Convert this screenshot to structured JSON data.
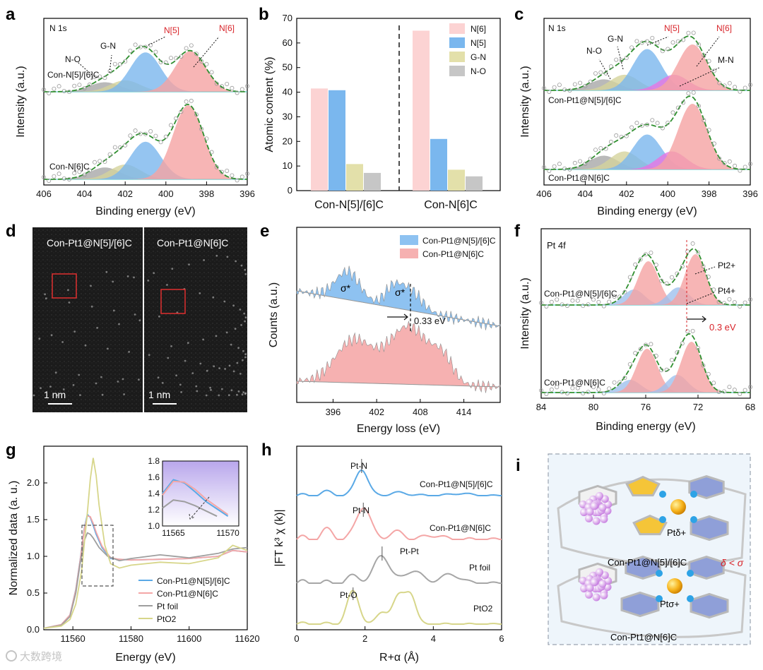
{
  "figure": {
    "panels": [
      "a",
      "b",
      "c",
      "d",
      "e",
      "f",
      "g",
      "h",
      "i"
    ],
    "watermark": "大数跨境"
  },
  "chart_data": [
    {
      "id": "a",
      "type": "line",
      "title": "N 1s",
      "xlabel": "Binding energy (eV)",
      "ylabel": "Intensity (a.u.)",
      "xlim": [
        406,
        396
      ],
      "xticks": [
        "406",
        "404",
        "402",
        "400",
        "398",
        "396"
      ],
      "samples": [
        "Con-N[5]/[6]C",
        "Con-N[6]C"
      ],
      "annotations": [
        "N[5]",
        "N[6]",
        "G-N",
        "N-O"
      ],
      "peaks_top": [
        {
          "name": "N-O",
          "center": 403.0,
          "height": 0.15,
          "color": "#a7a7a7"
        },
        {
          "name": "G-N",
          "center": 402.0,
          "height": 0.18,
          "color": "#d5d39c"
        },
        {
          "name": "N[5]",
          "center": 401.0,
          "height": 0.62,
          "color": "#7ab7ee"
        },
        {
          "name": "N[6]",
          "center": 398.8,
          "height": 0.64,
          "color": "#f5a3a3"
        }
      ],
      "peaks_bottom": [
        {
          "name": "N-O",
          "center": 403.0,
          "height": 0.12,
          "color": "#a7a7a7"
        },
        {
          "name": "G-N",
          "center": 402.0,
          "height": 0.15,
          "color": "#d5d39c"
        },
        {
          "name": "N[5]",
          "center": 401.0,
          "height": 0.38,
          "color": "#7ab7ee"
        },
        {
          "name": "N[6]",
          "center": 398.9,
          "height": 0.75,
          "color": "#f5a3a3"
        }
      ]
    },
    {
      "id": "b",
      "type": "bar",
      "ylabel": "Atomic content (%)",
      "ylim": [
        0,
        70
      ],
      "yticks": [
        "0",
        "10",
        "20",
        "30",
        "40",
        "50",
        "60",
        "70"
      ],
      "categories": [
        "Con-N[5]/[6]C",
        "Con-N[6]C"
      ],
      "legend": "top-right",
      "series": [
        {
          "name": "N[6]",
          "color": "#fcd3d3",
          "values": [
            41.5,
            65
          ]
        },
        {
          "name": "N[5]",
          "color": "#7ab7ee",
          "values": [
            40.8,
            21
          ]
        },
        {
          "name": "G-N",
          "color": "#e3e0aa",
          "values": [
            10.8,
            8.5
          ]
        },
        {
          "name": "N-O",
          "color": "#c6c6c6",
          "values": [
            7.2,
            5.8
          ]
        }
      ]
    },
    {
      "id": "c",
      "type": "line",
      "title": "N 1s",
      "xlabel": "Binding energy (eV)",
      "ylabel": "Intensity (a.u.)",
      "xlim": [
        406,
        396
      ],
      "xticks": [
        "406",
        "404",
        "402",
        "400",
        "398",
        "396"
      ],
      "samples": [
        "Con-Pt1@N[5]/[6]C",
        "Con-Pt1@N[6]C"
      ],
      "annotations": [
        "N-O",
        "G-N",
        "N[5]",
        "N[6]",
        "M-N"
      ],
      "peaks_top": [
        {
          "name": "N-O",
          "center": 403.1,
          "height": 0.12,
          "color": "#a7a7a7"
        },
        {
          "name": "G-N",
          "center": 402.1,
          "height": 0.17,
          "color": "#d5d39c"
        },
        {
          "name": "N[5]",
          "center": 401.0,
          "height": 0.45,
          "color": "#7ab7ee"
        },
        {
          "name": "M-N",
          "center": 399.7,
          "height": 0.17,
          "color": "#e774e4"
        },
        {
          "name": "N[6]",
          "center": 398.8,
          "height": 0.5,
          "color": "#f5a3a3"
        }
      ],
      "peaks_bottom": [
        {
          "name": "N-O",
          "center": 403.1,
          "height": 0.13,
          "color": "#a7a7a7"
        },
        {
          "name": "G-N",
          "center": 402.1,
          "height": 0.17,
          "color": "#d5d39c"
        },
        {
          "name": "N[5]",
          "center": 401.0,
          "height": 0.33,
          "color": "#7ab7ee"
        },
        {
          "name": "M-N",
          "center": 399.8,
          "height": 0.17,
          "color": "#e774e4"
        },
        {
          "name": "N[6]",
          "center": 398.8,
          "height": 0.62,
          "color": "#f5a3a3"
        }
      ]
    },
    {
      "id": "d",
      "type": "table",
      "images": [
        {
          "title": "Con-Pt1@N[5]/[6]C",
          "scalebar": "1 nm"
        },
        {
          "title": "Con-Pt1@N[6]C",
          "scalebar": "1 nm"
        }
      ]
    },
    {
      "id": "e",
      "type": "area",
      "xlabel": "Energy loss (eV)",
      "ylabel": "Counts (a.u.)",
      "xlim": [
        391,
        419
      ],
      "xticks": [
        "396",
        "402",
        "408",
        "414"
      ],
      "legend": "top-right",
      "series": [
        {
          "name": "Con-Pt1@N[5]/[6]C",
          "color": "#7ab7ee"
        },
        {
          "name": "Con-Pt1@N[6]C",
          "color": "#f5a3a3"
        }
      ],
      "annotations": [
        "σ*",
        "σ*",
        "0.33 eV"
      ]
    },
    {
      "id": "f",
      "type": "line",
      "title": "Pt 4f",
      "xlabel": "Binding energy (eV)",
      "ylabel": "Intensity (a.u.)",
      "xlim": [
        84,
        68
      ],
      "xticks": [
        "84",
        "80",
        "76",
        "72",
        "68"
      ],
      "samples": [
        "Con-Pt1@N[5]/[6]C",
        "Con-Pt1@N[6]C"
      ],
      "annotations": [
        "Pt2+",
        "Pt4+",
        "0.3 eV"
      ],
      "peaks_top": [
        {
          "name": "Pt4+ 5/2",
          "center": 76.9,
          "height": 0.22,
          "color": "#9fc1ee"
        },
        {
          "name": "Pt2+ 5/2",
          "center": 75.8,
          "height": 0.62,
          "color": "#f5a3a3"
        },
        {
          "name": "Pt4+ 7/2",
          "center": 73.5,
          "height": 0.25,
          "color": "#9fc1ee"
        },
        {
          "name": "Pt2+ 7/2",
          "center": 72.2,
          "height": 0.72,
          "color": "#f5a3a3"
        }
      ],
      "peaks_bottom": [
        {
          "name": "Pt4+ 5/2",
          "center": 77.2,
          "height": 0.18,
          "color": "#9fc1ee"
        },
        {
          "name": "Pt2+ 5/2",
          "center": 75.9,
          "height": 0.62,
          "color": "#f5a3a3"
        },
        {
          "name": "Pt4+ 7/2",
          "center": 73.6,
          "height": 0.25,
          "color": "#9fc1ee"
        },
        {
          "name": "Pt2+ 7/2",
          "center": 72.5,
          "height": 0.72,
          "color": "#f5a3a3"
        }
      ]
    },
    {
      "id": "g",
      "type": "line",
      "xlabel": "Energy (eV)",
      "ylabel": "Normalized data (a. u.)",
      "xlim": [
        11550,
        11620
      ],
      "ylim": [
        0,
        2.5
      ],
      "xticks": [
        "11560",
        "11580",
        "11600",
        "11620"
      ],
      "yticks": [
        "0.0",
        "0.5",
        "1.0",
        "1.5",
        "2.0"
      ],
      "legend": "bottom-right",
      "series": [
        {
          "name": "Con-Pt1@N[5]/[6]C",
          "color": "#5aa9e6",
          "x": [
            11550,
            11556,
            11559,
            11561,
            11562.5,
            11564,
            11565,
            11566,
            11567,
            11568,
            11570,
            11573,
            11576,
            11580,
            11590,
            11600,
            11610,
            11615,
            11620
          ],
          "y": [
            0.02,
            0.07,
            0.2,
            0.55,
            0.95,
            1.4,
            1.57,
            1.53,
            1.42,
            1.3,
            1.12,
            0.97,
            0.96,
            0.95,
            0.96,
            0.97,
            1.0,
            1.08,
            1.06
          ]
        },
        {
          "name": "Con-Pt1@N[6]C",
          "color": "#f4a6a6",
          "x": [
            11550,
            11556,
            11559,
            11561,
            11562.5,
            11564,
            11565,
            11566,
            11567,
            11568,
            11570,
            11573,
            11576,
            11580,
            11590,
            11600,
            11610,
            11615,
            11620
          ],
          "y": [
            0.02,
            0.07,
            0.2,
            0.54,
            0.94,
            1.38,
            1.55,
            1.54,
            1.45,
            1.33,
            1.14,
            0.98,
            0.96,
            0.95,
            0.96,
            0.97,
            1.0,
            1.08,
            1.06
          ]
        },
        {
          "name": "Pt foil",
          "color": "#9e9e9e",
          "x": [
            11550,
            11556,
            11559,
            11561,
            11562.5,
            11564,
            11565,
            11566,
            11567,
            11569,
            11572,
            11576,
            11580,
            11590,
            11600,
            11610,
            11615,
            11620
          ],
          "y": [
            0.02,
            0.06,
            0.18,
            0.5,
            0.9,
            1.22,
            1.32,
            1.3,
            1.25,
            1.12,
            1.0,
            0.94,
            0.97,
            1.02,
            0.98,
            1.04,
            1.1,
            1.12
          ]
        },
        {
          "name": "PtO2",
          "color": "#d7d68a",
          "x": [
            11550,
            11556,
            11559,
            11561,
            11563,
            11565,
            11566,
            11567,
            11568,
            11569,
            11571,
            11573,
            11576,
            11580,
            11590,
            11600,
            11610,
            11615,
            11620
          ],
          "y": [
            0.02,
            0.05,
            0.14,
            0.35,
            0.8,
            1.6,
            2.05,
            2.34,
            2.1,
            1.7,
            1.15,
            0.9,
            0.84,
            0.88,
            0.92,
            0.9,
            0.98,
            1.15,
            1.08
          ]
        }
      ],
      "inset": {
        "xlim": [
          11564,
          11571
        ],
        "ylim": [
          1.0,
          1.8
        ],
        "xticks": [
          "11565",
          "11570"
        ],
        "yticks": [
          "1.0",
          "1.2",
          "1.4",
          "1.6",
          "1.8"
        ]
      }
    },
    {
      "id": "h",
      "type": "line",
      "xlabel": "R+α (Å)",
      "ylabel": "|FT k³ χ (k)|",
      "xlim": [
        0,
        6
      ],
      "xticks": [
        "0",
        "2",
        "4",
        "6"
      ],
      "series": [
        {
          "name": "Con-Pt1@N[5]/[6]C",
          "color": "#5aa9e6"
        },
        {
          "name": "Con-Pt1@N[6]C",
          "color": "#f4a6a6"
        },
        {
          "name": "Pt foil",
          "color": "#a6a6a6"
        },
        {
          "name": "PtO2",
          "color": "#d7d68a"
        }
      ],
      "annotations": [
        "Pt-N",
        "Pt-N",
        "Pt-Pt",
        "Pt-O"
      ]
    },
    {
      "id": "i",
      "type": "table",
      "structures": [
        {
          "label": "Con-Pt1@N[5]/[6]C",
          "charge": "Ptδ+"
        },
        {
          "label": "Con-Pt1@N[6]C",
          "charge": "Ptσ+"
        }
      ],
      "relation": "δ < σ"
    }
  ]
}
